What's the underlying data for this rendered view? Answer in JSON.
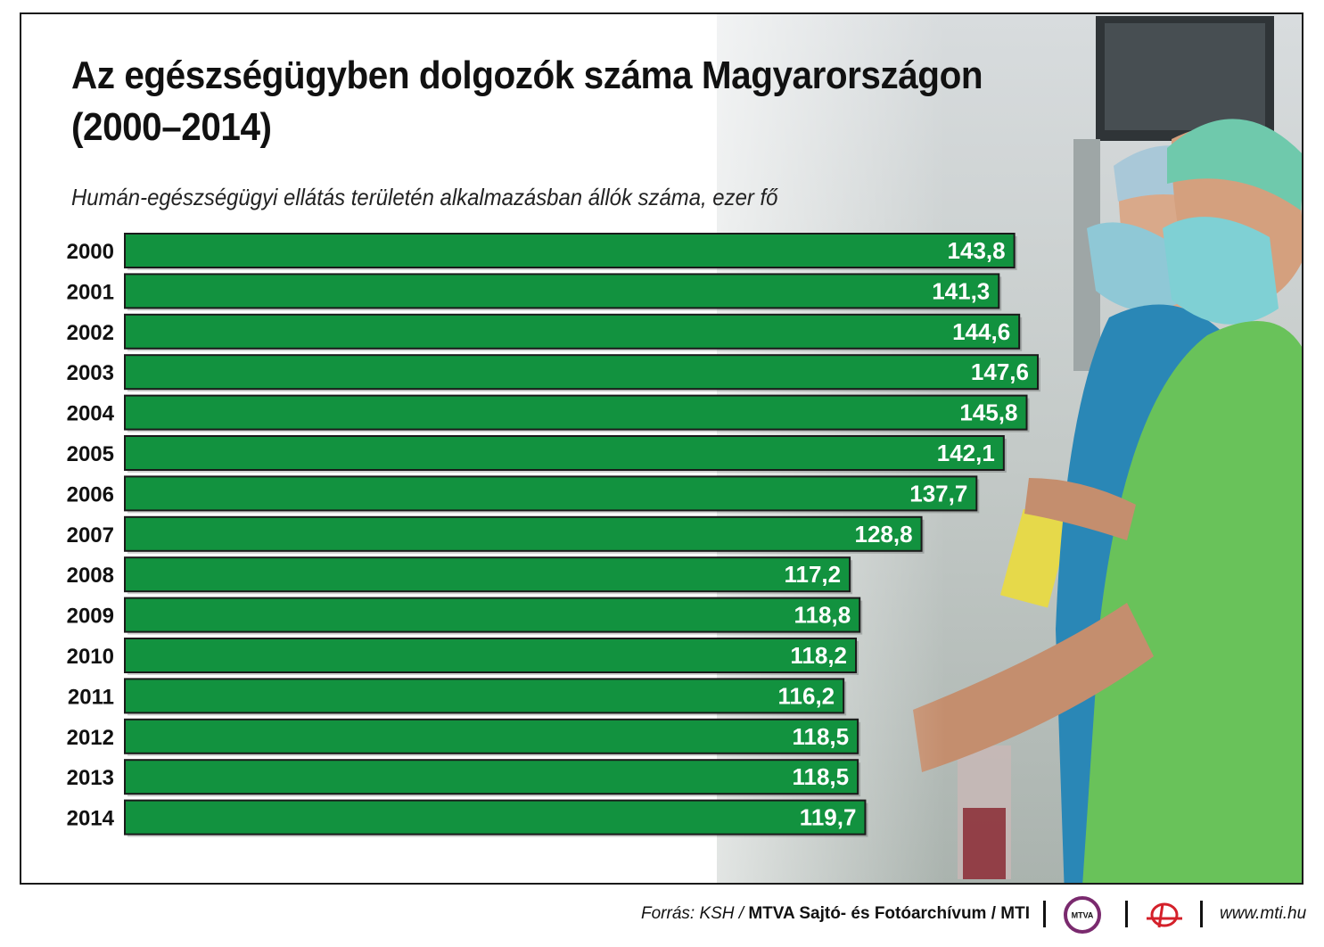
{
  "title_line1": "Az egészségügyben dolgozók száma Magyarországon",
  "title_line2": "(2000–2014)",
  "subtitle": "Humán-egészségügyi ellátás területén alkalmazásban állók száma, ezer fő",
  "chart_data": {
    "type": "bar",
    "orientation": "horizontal",
    "title": "Az egészségügyben dolgozók száma Magyarországon (2000–2014)",
    "subtitle": "Humán-egészségügyi ellátás területén alkalmazásban állók száma, ezer fő",
    "categories": [
      "2000",
      "2001",
      "2002",
      "2003",
      "2004",
      "2005",
      "2006",
      "2007",
      "2008",
      "2009",
      "2010",
      "2011",
      "2012",
      "2013",
      "2014"
    ],
    "values": [
      143.8,
      141.3,
      144.6,
      147.6,
      145.8,
      142.1,
      137.7,
      128.8,
      117.2,
      118.8,
      118.2,
      116.2,
      118.5,
      118.5,
      119.7
    ],
    "value_labels": [
      "143,8",
      "141,3",
      "144,6",
      "147,6",
      "145,8",
      "142,1",
      "137,7",
      "128,8",
      "117,2",
      "118,8",
      "118,2",
      "116,2",
      "118,5",
      "118,5",
      "119,7"
    ],
    "xlim": [
      0,
      147.6
    ],
    "bar_color": "#12923f",
    "grid": false,
    "legend": "none"
  },
  "footer": {
    "source_prefix": "Forrás: KSH / ",
    "source_org": "MTVA Sajtó- és Fotóarchívum / MTI",
    "logo_mtva_text": "MTVA",
    "website": "www.mti.hu"
  },
  "colors": {
    "bar": "#12923f",
    "bar_text": "#ffffff",
    "text": "#111111",
    "logo_purple": "#7a2a6e",
    "logo_red": "#d4202a"
  }
}
